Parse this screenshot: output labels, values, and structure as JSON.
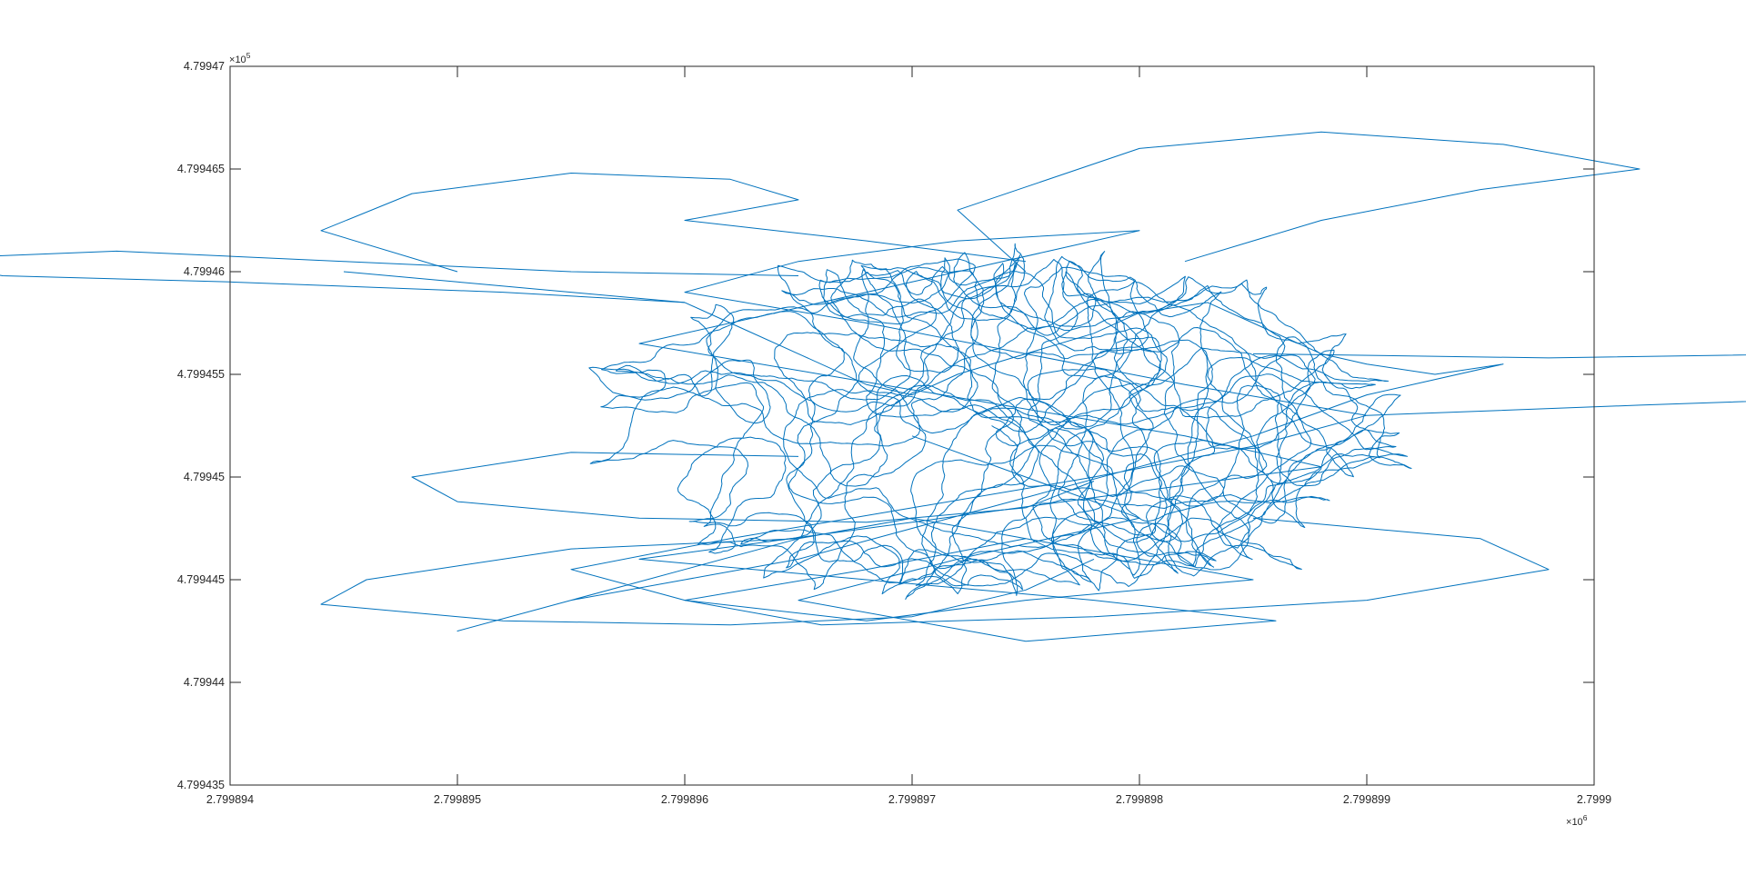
{
  "chart_data": {
    "type": "line",
    "title": "",
    "xlabel": "",
    "ylabel": "",
    "x_multiplier": {
      "base": "10",
      "exponent": "6",
      "times_sign": "×"
    },
    "y_multiplier": {
      "base": "10",
      "exponent": "5",
      "times_sign": "×"
    },
    "xlim": [
      2.799894,
      2.7999
    ],
    "ylim": [
      4.799435,
      4.79947
    ],
    "x_ticks": [
      2.799894,
      2.799895,
      2.799896,
      2.799897,
      2.799898,
      2.799899,
      2.7999
    ],
    "x_tick_labels": [
      "2.799894",
      "2.799895",
      "2.799896",
      "2.799897",
      "2.799898",
      "2.799899",
      "2.7999"
    ],
    "y_ticks": [
      4.799435,
      4.79944,
      4.799445,
      4.79945,
      4.799455,
      4.79946,
      4.799465,
      4.79947
    ],
    "y_tick_labels": [
      "4.799435",
      "4.79944",
      "4.799445",
      "4.79945",
      "4.799455",
      "4.79946",
      "4.799465",
      "4.79947"
    ],
    "grid": false,
    "legend": "none",
    "line_color": "#0072BD",
    "series": [
      {
        "description_values_in_axis_units": "random-walk trajectory",
        "x": [
          2.7998945,
          2.799895,
          2.7998955,
          2.799896,
          2.7998962,
          2.7998965,
          2.7998968,
          2.799897,
          2.7998972,
          2.7998975,
          2.7998978,
          2.799898,
          2.7998983,
          2.7998985,
          2.7998988,
          2.799899,
          2.7998993,
          2.7998996,
          2.799899,
          2.7998985,
          2.799898,
          2.7998975,
          2.799897,
          2.7998965,
          2.799896,
          2.7998955,
          2.799895,
          2.7998955,
          2.799896,
          2.7998965,
          2.799897,
          2.7998975,
          2.799898,
          2.7998985,
          2.7998975,
          2.7998968,
          2.799896,
          2.7998955,
          2.7998962,
          2.799897,
          2.7998978,
          2.7998985,
          2.799899,
          2.7998982,
          2.7998975,
          2.7998968,
          2.799896,
          2.7998965,
          2.7998972,
          2.799898,
          2.7998976,
          2.799897,
          2.7998964,
          2.7998958,
          2.7998966,
          2.7998974,
          2.7998982,
          2.7998988,
          2.7998978,
          2.7998968,
          2.7998958,
          2.7998968,
          2.7998978,
          2.7998986,
          2.7998975,
          2.7998965,
          2.7998972,
          2.799898,
          2.7998975,
          2.799897
        ],
        "y": [
          4.79946,
          4.7994595,
          4.799459,
          4.7994585,
          4.7994575,
          4.799456,
          4.7994545,
          4.799454,
          4.799455,
          4.799456,
          4.799457,
          4.799458,
          4.7994585,
          4.7994575,
          4.799456,
          4.7994555,
          4.799455,
          4.7994555,
          4.799454,
          4.799452,
          4.7994505,
          4.799449,
          4.7994475,
          4.799446,
          4.799445,
          4.799444,
          4.7994425,
          4.799444,
          4.7994455,
          4.799447,
          4.799448,
          4.799447,
          4.799446,
          4.799445,
          4.799444,
          4.799443,
          4.799444,
          4.7994455,
          4.799447,
          4.7994485,
          4.79945,
          4.7994515,
          4.799453,
          4.7994545,
          4.799456,
          4.7994575,
          4.799459,
          4.7994605,
          4.7994615,
          4.799462,
          4.799461,
          4.7994595,
          4.799458,
          4.7994565,
          4.799455,
          4.7994535,
          4.799452,
          4.7994505,
          4.799449,
          4.7994475,
          4.799446,
          4.799445,
          4.799444,
          4.799443,
          4.799442,
          4.799444,
          4.799446,
          4.799448,
          4.79945,
          4.799452
        ]
      }
    ]
  }
}
